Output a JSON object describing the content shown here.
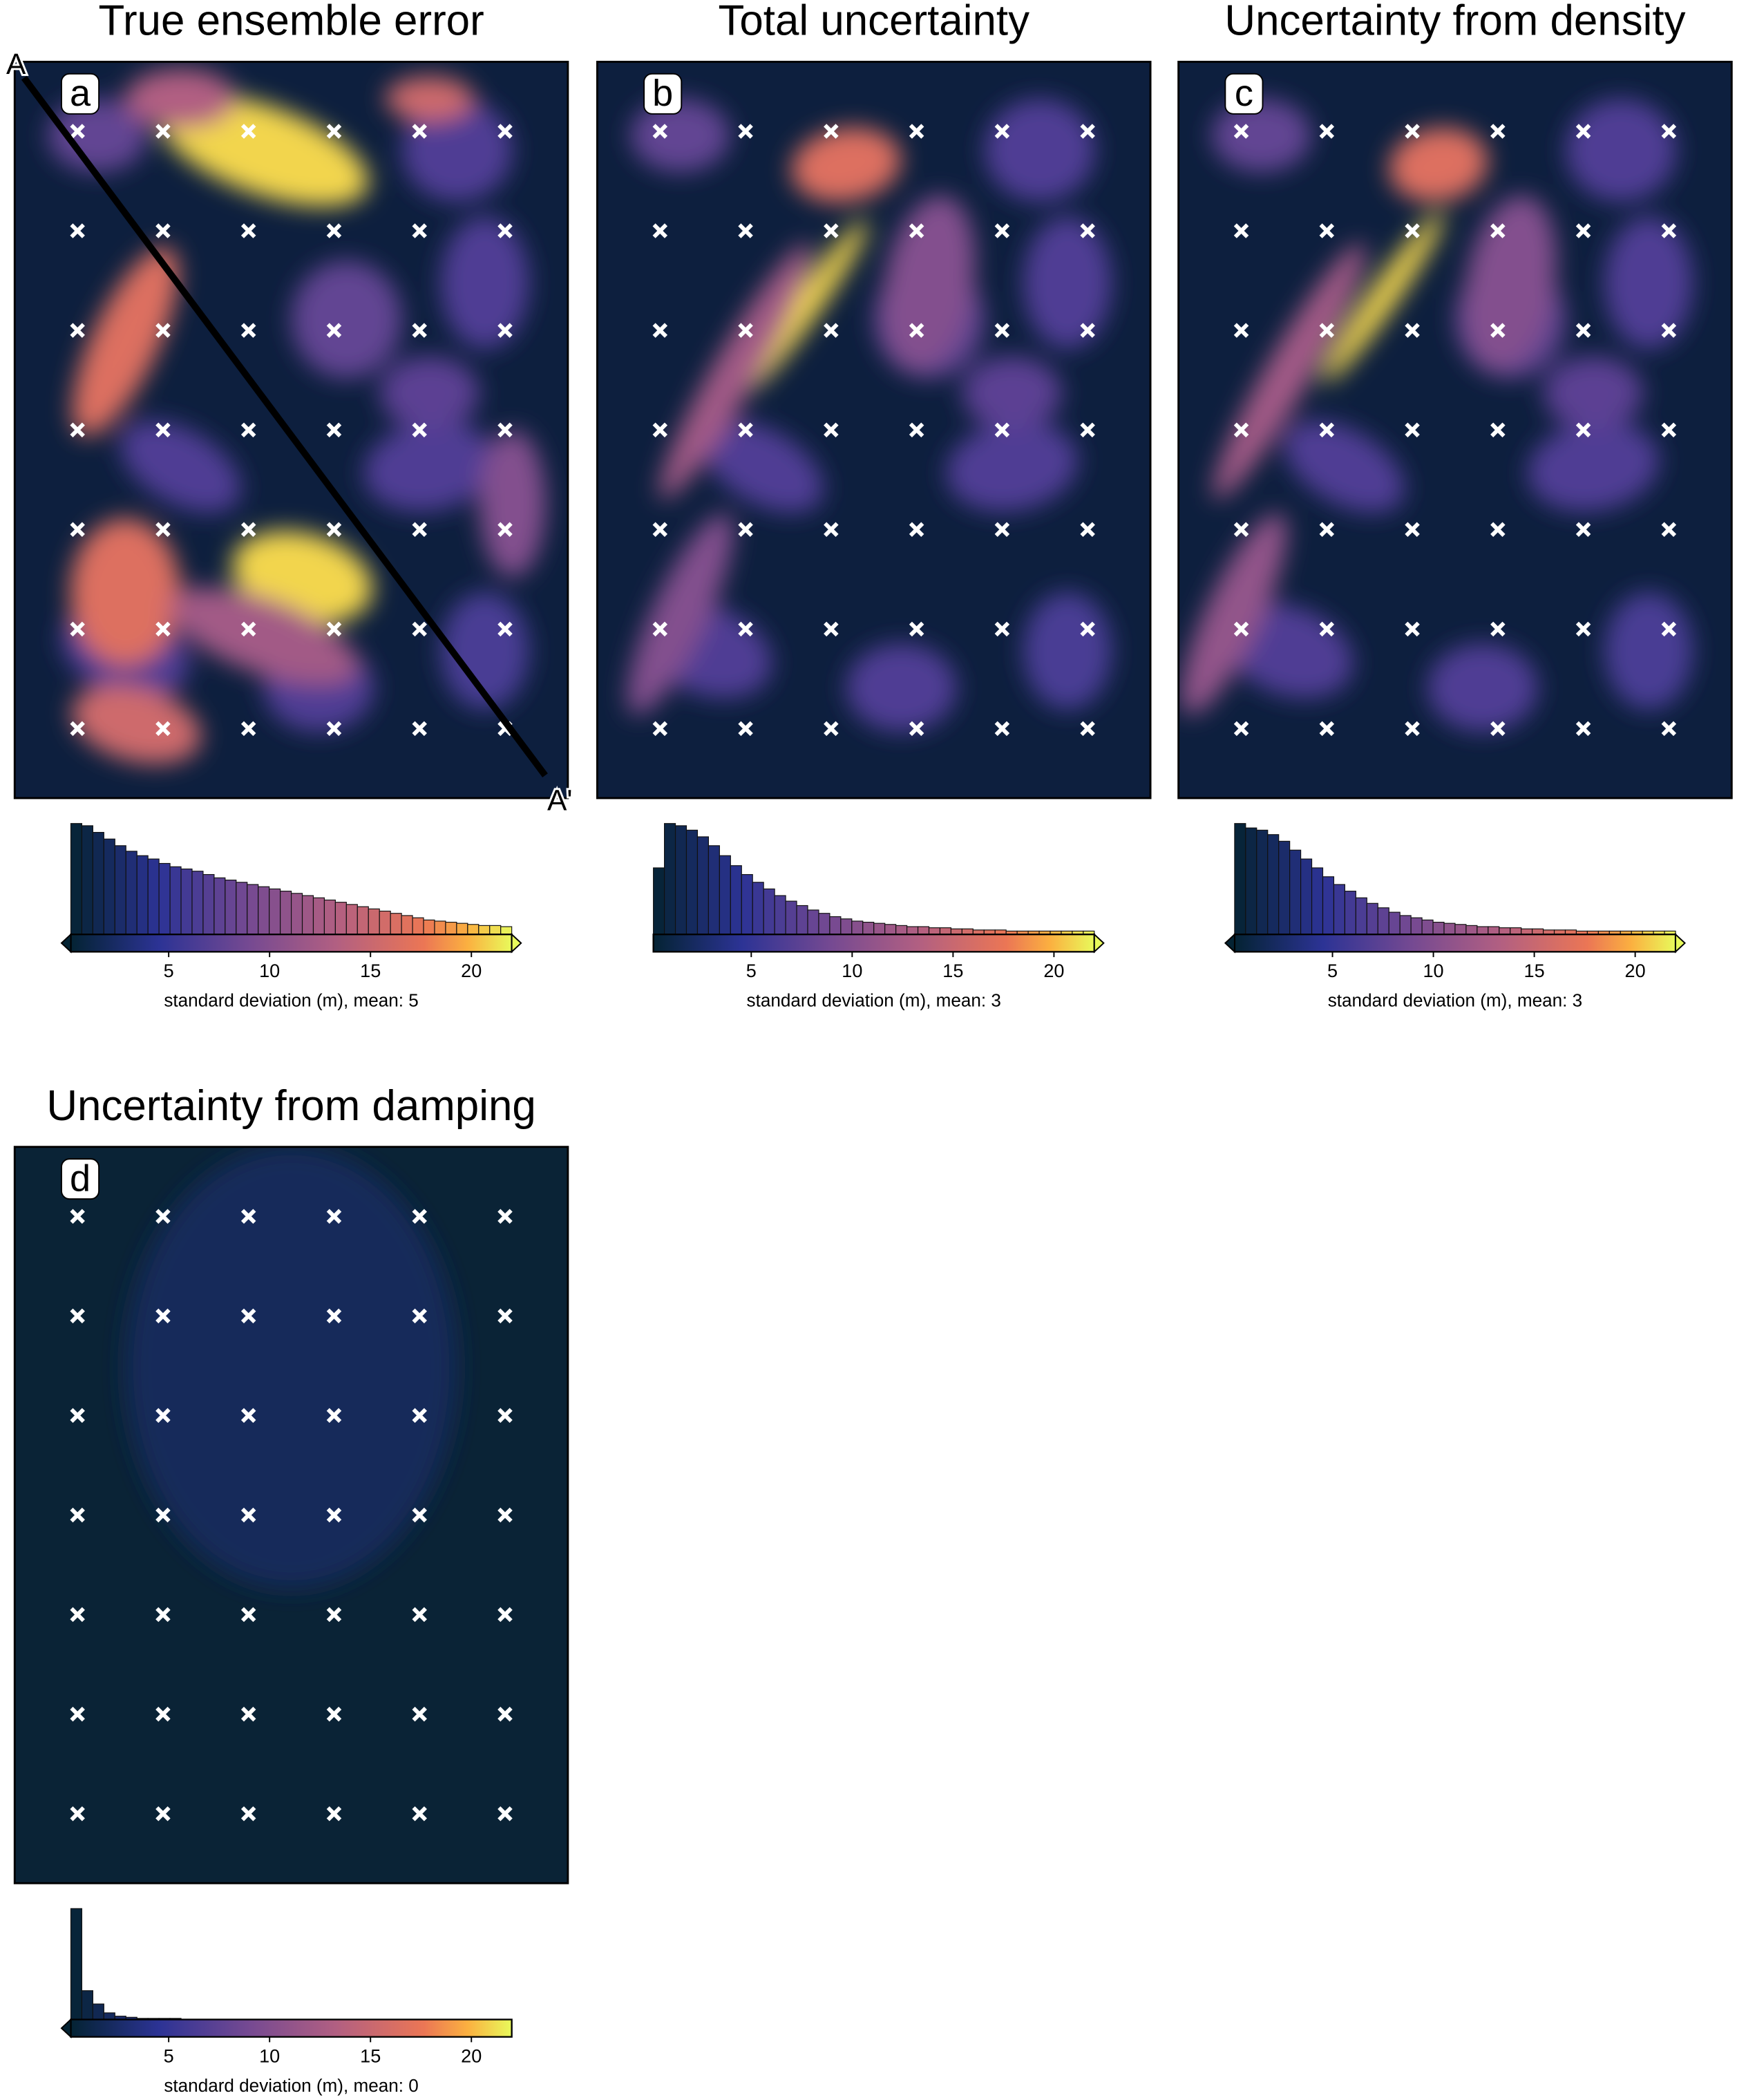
{
  "chart_data": {
    "type": "map-panels",
    "panels": [
      {
        "title": "True ensemble error",
        "label": "a",
        "extend": "both",
        "colorbar": {
          "xlim": [
            0.15,
            22
          ],
          "xticks": [
            5,
            10,
            15,
            20
          ],
          "label": "standard deviation (m), mean: 5"
        },
        "histogram": [
          100,
          98,
          92,
          86,
          80,
          75,
          71,
          68,
          64,
          61,
          59,
          57,
          54,
          51,
          49,
          47,
          45,
          43,
          41,
          39,
          37,
          35,
          33,
          31,
          29,
          27,
          25,
          23,
          21,
          19,
          17,
          15,
          13,
          12,
          11,
          10,
          9,
          8,
          8,
          7
        ]
      },
      {
        "title": "Total uncertainty",
        "label": "b",
        "extend": "max",
        "colorbar": {
          "xlim": [
            0.15,
            22
          ],
          "xticks": [
            5,
            10,
            15,
            20
          ],
          "label": "standard deviation (m), mean: 3"
        },
        "histogram": [
          60,
          100,
          98,
          94,
          88,
          80,
          71,
          62,
          54,
          47,
          41,
          35,
          30,
          26,
          22,
          19,
          16,
          14,
          12,
          11,
          10,
          9,
          8,
          7,
          7,
          6,
          6,
          5,
          5,
          4,
          4,
          4,
          3,
          3,
          3,
          3,
          3,
          3,
          3,
          3
        ]
      },
      {
        "title": "Uncertainty from density",
        "label": "c",
        "extend": "both",
        "colorbar": {
          "xlim": [
            0.15,
            22
          ],
          "xticks": [
            5,
            10,
            15,
            20
          ],
          "label": "standard deviation (m), mean: 3"
        },
        "histogram": [
          100,
          96,
          94,
          90,
          84,
          76,
          68,
          60,
          52,
          45,
          39,
          33,
          28,
          24,
          20,
          17,
          15,
          13,
          11,
          10,
          9,
          8,
          7,
          7,
          6,
          6,
          5,
          5,
          4,
          4,
          4,
          3,
          3,
          3,
          3,
          3,
          3,
          3,
          3,
          3
        ]
      },
      {
        "title": "Uncertainty from damping",
        "label": "d",
        "extend": "min",
        "colorbar": {
          "xlim": [
            0.15,
            22
          ],
          "xticks": [
            5,
            10,
            15,
            20
          ],
          "label": "standard deviation (m), mean: 0"
        },
        "histogram": [
          100,
          26,
          14,
          6,
          3,
          2,
          1,
          1,
          1,
          1,
          0,
          0,
          0,
          0,
          0,
          0,
          0,
          0,
          0,
          0,
          0,
          0,
          0,
          0,
          0,
          0,
          0,
          0,
          0,
          0,
          0,
          0,
          0,
          0,
          0,
          0,
          0,
          0,
          0,
          0
        ]
      }
    ],
    "section": {
      "start": "A",
      "end": "A'"
    }
  }
}
